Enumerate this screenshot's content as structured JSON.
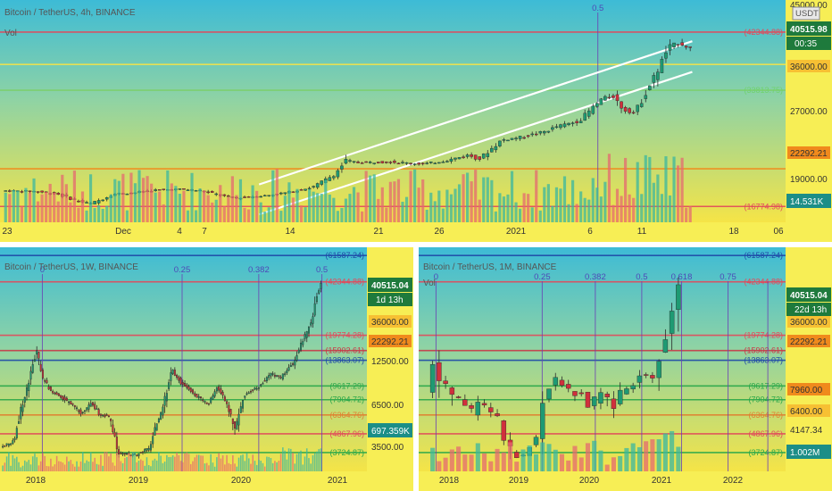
{
  "chart_data": [
    {
      "id": "p1",
      "type": "candlestick",
      "title": "Bitcoin / TetherUS, 4h, BINANCE",
      "indicator": "Vol",
      "currency": "USDT",
      "price_label": "40515.98",
      "countdown": "00:35",
      "volume_label": "14.531K",
      "fib_label": "0.5",
      "x_ticks": [
        "23",
        "Dec",
        "4",
        "7",
        "14",
        "21",
        "26",
        "2021",
        "6",
        "11",
        "18",
        "06"
      ],
      "y_ticks": [
        "45000.00",
        "36000.00",
        "27000.00",
        "22292.21",
        "19000.00"
      ],
      "levels": [
        {
          "label": "(42344.88)",
          "value": 42344.88,
          "color": "#e24a5b"
        },
        {
          "label": "(33813.75)",
          "value": 33813.75,
          "color": "#6fd36f"
        },
        {
          "label": "(16774.98)",
          "value": 16774.98,
          "color": "#e24a5b"
        }
      ],
      "hlines": [
        {
          "value": 42344.88,
          "color": "#e24a5b"
        },
        {
          "value": 37600,
          "color": "#f3e34a"
        },
        {
          "value": 33813.75,
          "color": "#7dcf6a"
        },
        {
          "value": 22292.21,
          "color": "#f08a1c"
        },
        {
          "value": 16774.98,
          "color": "#e24a5b"
        }
      ],
      "y_range": [
        15500,
        46000
      ],
      "price_path": [
        [
          0,
          19100
        ],
        [
          3,
          19000
        ],
        [
          5,
          18600
        ],
        [
          7,
          17500
        ],
        [
          8,
          17200
        ],
        [
          9,
          17800
        ],
        [
          10,
          18600
        ],
        [
          12,
          18800
        ],
        [
          14,
          19200
        ],
        [
          16,
          19300
        ],
        [
          18,
          19100
        ],
        [
          20,
          18300
        ],
        [
          21,
          18000
        ],
        [
          24,
          18400
        ],
        [
          26,
          18900
        ],
        [
          28,
          19600
        ],
        [
          30,
          21500
        ],
        [
          31,
          23500
        ],
        [
          32,
          23200
        ],
        [
          35,
          23300
        ],
        [
          38,
          23000
        ],
        [
          40,
          23500
        ],
        [
          42,
          24300
        ],
        [
          43,
          23700
        ],
        [
          45,
          26500
        ],
        [
          47,
          27000
        ],
        [
          49,
          27800
        ],
        [
          50,
          28500
        ],
        [
          52,
          29300
        ],
        [
          54,
          32500
        ],
        [
          55,
          33000
        ],
        [
          56,
          31000
        ],
        [
          57,
          30500
        ],
        [
          58,
          33500
        ],
        [
          59,
          36500
        ],
        [
          60,
          40000
        ],
        [
          61,
          40800
        ],
        [
          62,
          40000
        ]
      ],
      "channel": [
        [
          [
            23,
            20000
          ],
          [
            62,
            41000
          ]
        ],
        [
          [
            23,
            15600
          ],
          [
            62,
            36500
          ]
        ]
      ],
      "fib_x": 53.5,
      "x_range": [
        0,
        70
      ]
    },
    {
      "id": "p2",
      "type": "candlestick",
      "title": "Bitcoin / TetherUS, 1W, BINANCE",
      "price_label": "40515.04",
      "countdown": "1d 13h",
      "volume_label": "697.359K",
      "fib_labels": [
        "0",
        "0.25",
        "0.382",
        "0.5"
      ],
      "x_ticks": [
        "2018",
        "2019",
        "2020",
        "2021"
      ],
      "y_ticks": [
        "36000.00",
        "22292.21",
        "12500.00",
        "6500.00",
        "3500.00"
      ],
      "levels": [
        {
          "label": "(61587.24)",
          "value": 61587.24,
          "color": "#1f4aa8"
        },
        {
          "label": "(42344.88)",
          "value": 42344.88,
          "color": "#e24a5b"
        },
        {
          "label": "(19774.28)",
          "value": 19774.28,
          "color": "#e24a5b"
        },
        {
          "label": "(15902.61)",
          "value": 15902.61,
          "color": "#c83a48"
        },
        {
          "label": "(13863.07)",
          "value": 13863.07,
          "color": "#1f4aa8"
        },
        {
          "label": "(9617.29)",
          "value": 9617.29,
          "color": "#2aa84a"
        },
        {
          "label": "(7904.72)",
          "value": 7904.72,
          "color": "#2aa84a"
        },
        {
          "label": "(6364.76)",
          "value": 6364.76,
          "color": "#e08030"
        },
        {
          "label": "(4867.96)",
          "value": 4867.96,
          "color": "#e24a5b"
        },
        {
          "label": "(3724.87)",
          "value": 3724.87,
          "color": "#2aa84a"
        }
      ],
      "price_path": [
        [
          0,
          4000
        ],
        [
          3,
          4400
        ],
        [
          6,
          9500
        ],
        [
          8,
          16000
        ],
        [
          9,
          11000
        ],
        [
          11,
          9000
        ],
        [
          13,
          8400
        ],
        [
          16,
          7200
        ],
        [
          18,
          6500
        ],
        [
          20,
          7500
        ],
        [
          22,
          6400
        ],
        [
          24,
          6200
        ],
        [
          26,
          3700
        ],
        [
          30,
          3600
        ],
        [
          33,
          4000
        ],
        [
          36,
          7000
        ],
        [
          38,
          12000
        ],
        [
          40,
          10000
        ],
        [
          43,
          8500
        ],
        [
          46,
          7300
        ],
        [
          48,
          9500
        ],
        [
          50,
          7500
        ],
        [
          52,
          5000
        ],
        [
          54,
          8500
        ],
        [
          57,
          9400
        ],
        [
          60,
          11500
        ],
        [
          62,
          10700
        ],
        [
          65,
          13500
        ],
        [
          67,
          18500
        ],
        [
          69,
          24000
        ],
        [
          70,
          35000
        ],
        [
          71,
          40500
        ]
      ],
      "fib_xs": [
        9,
        40,
        57,
        71
      ],
      "x_range": [
        0,
        80
      ]
    },
    {
      "id": "p3",
      "type": "candlestick",
      "title": "Bitcoin / TetherUS, 1M, BINANCE",
      "indicator": "Vol",
      "price_label": "40515.04",
      "countdown": "22d 13h",
      "volume_label": "1.002M",
      "fib_labels": [
        "0",
        "0.25",
        "0.382",
        "0.5",
        "0.618",
        "0.75"
      ],
      "x_ticks": [
        "2018",
        "2019",
        "2020",
        "2021",
        "2022"
      ],
      "y_ticks": [
        "36000.00",
        "22292.21",
        "7960.00",
        "6400.00",
        "4147.34"
      ],
      "levels": [
        {
          "label": "(61587.24)",
          "value": 61587.24,
          "color": "#1f4aa8"
        },
        {
          "label": "(42344.88)",
          "value": 42344.88,
          "color": "#e24a5b"
        },
        {
          "label": "(19774.28)",
          "value": 19774.28,
          "color": "#e24a5b"
        },
        {
          "label": "(15902.61)",
          "value": 15902.61,
          "color": "#c83a48"
        },
        {
          "label": "(13863.07)",
          "value": 13863.07,
          "color": "#1f4aa8"
        },
        {
          "label": "(9617.29)",
          "value": 9617.29,
          "color": "#2aa84a"
        },
        {
          "label": "(7904.72)",
          "value": 7904.72,
          "color": "#2aa84a"
        },
        {
          "label": "(6364.76)",
          "value": 6364.76,
          "color": "#e08030"
        },
        {
          "label": "(4867.96)",
          "value": 4867.96,
          "color": "#e24a5b"
        },
        {
          "label": "(3724.87)",
          "value": 3724.87,
          "color": "#2aa84a"
        }
      ],
      "price_path": [
        [
          0,
          10000
        ],
        [
          1,
          13800
        ],
        [
          2,
          10200
        ],
        [
          3,
          9300
        ],
        [
          4,
          7900
        ],
        [
          5,
          8100
        ],
        [
          6,
          7400
        ],
        [
          7,
          6400
        ],
        [
          8,
          7600
        ],
        [
          9,
          7000
        ],
        [
          10,
          6500
        ],
        [
          11,
          6300
        ],
        [
          12,
          4200
        ],
        [
          13,
          3800
        ],
        [
          14,
          3500
        ],
        [
          15,
          3800
        ],
        [
          16,
          4100
        ],
        [
          17,
          5300
        ],
        [
          18,
          8600
        ],
        [
          19,
          10800
        ],
        [
          20,
          10100
        ],
        [
          21,
          9600
        ],
        [
          22,
          8300
        ],
        [
          23,
          9100
        ],
        [
          24,
          7500
        ],
        [
          25,
          7200
        ],
        [
          26,
          9400
        ],
        [
          27,
          8600
        ],
        [
          28,
          6400
        ],
        [
          29,
          8600
        ],
        [
          30,
          9500
        ],
        [
          31,
          9100
        ],
        [
          32,
          11300
        ],
        [
          33,
          11700
        ],
        [
          34,
          10800
        ],
        [
          35,
          13800
        ],
        [
          36,
          19700
        ],
        [
          37,
          29000
        ],
        [
          38,
          40500
        ]
      ],
      "fib_xs": [
        1,
        17,
        25,
        32,
        38,
        45,
        51
      ],
      "x_range": [
        0,
        53
      ]
    }
  ]
}
